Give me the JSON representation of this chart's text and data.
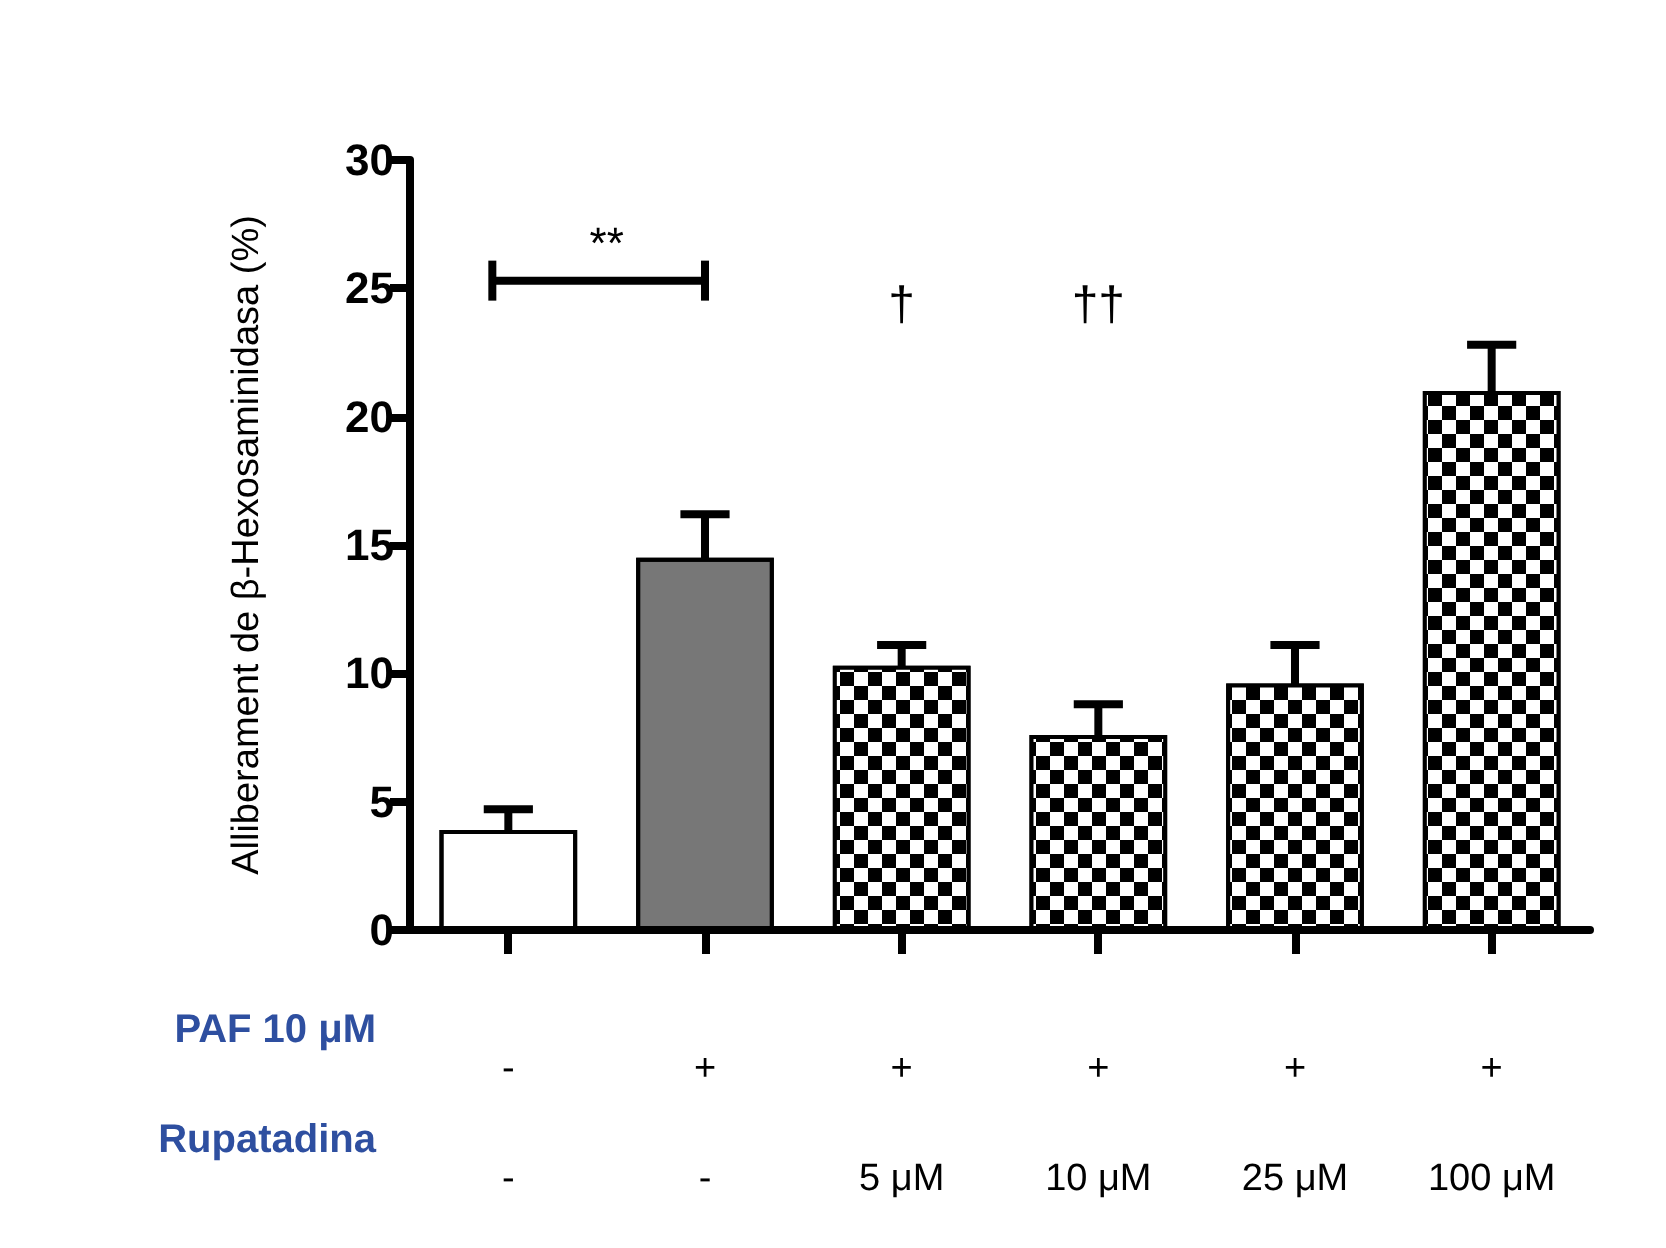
{
  "chart_data": {
    "type": "bar",
    "ylabel": "Alliberament de β-Hexosaminidasa (%)",
    "categories": [
      "-\n-",
      "+\n-",
      "+\n5 μM",
      "+\n10 μM",
      "+\n25 μM",
      "+\n100 μM"
    ],
    "values": [
      3.9,
      14.5,
      10.3,
      7.6,
      9.6,
      21.0
    ],
    "errors": [
      0.8,
      1.7,
      0.8,
      1.2,
      1.5,
      1.8
    ],
    "colors": [
      "#ffffff",
      "#777777",
      "#000000",
      "#000000",
      "#000000",
      "#000000"
    ],
    "ylim": [
      0,
      30
    ],
    "yticks": [
      0,
      5,
      10,
      15,
      20,
      25,
      30
    ],
    "grid": false,
    "annotations": [
      "PAF 10 μM",
      "Rupatadina",
      "**",
      "†",
      "††"
    ]
  }
}
